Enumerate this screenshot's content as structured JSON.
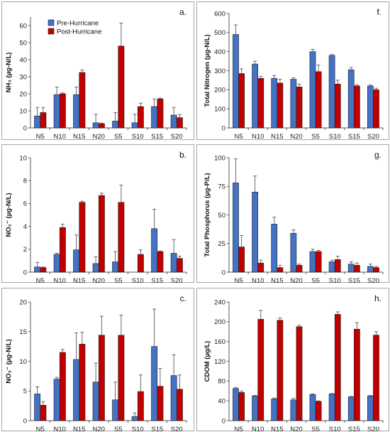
{
  "colors": {
    "pre": "#4472c4",
    "post": "#c00000",
    "frame": "#a6a6a6"
  },
  "legend": {
    "pre_label": "Pre-Hurricane",
    "post_label": "Post-Hurricane",
    "position": "top-left"
  },
  "chart_data": [
    {
      "type": "bar",
      "panel_label": "a.",
      "ylabel": "NH₃ (µg-N/L)",
      "categories": [
        "N5",
        "N10",
        "N15",
        "N20",
        "S5",
        "S10",
        "S15",
        "S20"
      ],
      "ylim": [
        0,
        65
      ],
      "yticks": [
        0,
        10,
        20,
        30,
        40,
        50,
        60
      ],
      "series": [
        {
          "name": "Pre-Hurricane",
          "values": [
            7,
            19.5,
            19.5,
            3,
            4,
            3,
            12.5,
            7.5
          ],
          "errors": [
            5,
            4.5,
            4.5,
            5,
            5,
            5,
            4.5,
            4.5
          ]
        },
        {
          "name": "Post-Hurricane",
          "values": [
            9,
            20,
            32.5,
            2.5,
            48,
            12.5,
            17,
            6
          ],
          "errors": [
            3,
            0.5,
            1.5,
            0.3,
            13.5,
            2,
            0.5,
            1.8
          ]
        }
      ]
    },
    {
      "type": "bar",
      "panel_label": "f.",
      "ylabel": "Total Nitrogen (µg-N/L)",
      "categories": [
        "N5",
        "N10",
        "N15",
        "N20",
        "S5",
        "S10",
        "S15",
        "S20"
      ],
      "ylim": [
        0,
        600
      ],
      "yticks": [
        0,
        100,
        200,
        300,
        400,
        500,
        600
      ],
      "series": [
        {
          "name": "Pre-Hurricane",
          "values": [
            490,
            335,
            260,
            255,
            400,
            380,
            305,
            220
          ],
          "errors": [
            50,
            15,
            15,
            8,
            12,
            5,
            12,
            5
          ]
        },
        {
          "name": "Post-Hurricane",
          "values": [
            285,
            260,
            235,
            215,
            295,
            230,
            220,
            200
          ],
          "errors": [
            25,
            10,
            20,
            15,
            35,
            20,
            5,
            8
          ]
        }
      ]
    },
    {
      "type": "bar",
      "panel_label": "b.",
      "ylabel": "NO₂⁻ (µg-N/L)",
      "categories": [
        "N5",
        "N10",
        "N15",
        "N20",
        "S5",
        "S10",
        "S15",
        "S20"
      ],
      "ylim": [
        0,
        10
      ],
      "yticks": [
        0,
        2,
        4,
        6,
        8,
        10
      ],
      "series": [
        {
          "name": "Pre-Hurricane",
          "values": [
            0.45,
            1.55,
            1.95,
            0.75,
            0.9,
            0,
            3.8,
            1.65
          ],
          "errors": [
            0.4,
            0.1,
            1.3,
            0.6,
            0.9,
            0,
            1.7,
            1.2
          ]
        },
        {
          "name": "Post-Hurricane",
          "values": [
            0.4,
            3.9,
            6.1,
            6.7,
            6.1,
            1.55,
            1.8,
            1.2
          ],
          "errors": [
            0.05,
            0.3,
            0.1,
            0.2,
            1.5,
            0.4,
            0.05,
            0.2
          ]
        }
      ]
    },
    {
      "type": "bar",
      "panel_label": "g.",
      "ylabel": "Total Phosphorus (µg-P/L)",
      "categories": [
        "N5",
        "N10",
        "N15",
        "N20",
        "S5",
        "S10",
        "S15",
        "S20"
      ],
      "ylim": [
        0,
        100
      ],
      "yticks": [
        0,
        25,
        50,
        75,
        100
      ],
      "series": [
        {
          "name": "Pre-Hurricane",
          "values": [
            78,
            70,
            42,
            34,
            18,
            9,
            7,
            5
          ],
          "errors": [
            21,
            14,
            6,
            3,
            2,
            1.5,
            2,
            2
          ]
        },
        {
          "name": "Post-Hurricane",
          "values": [
            22,
            8,
            4,
            6,
            18,
            11,
            6,
            4
          ],
          "errors": [
            10,
            2.5,
            2,
            1,
            1,
            3,
            2,
            1
          ]
        }
      ]
    },
    {
      "type": "bar",
      "panel_label": "c.",
      "ylabel": "NO₃⁻ (µg-N/L)",
      "categories": [
        "N5",
        "N10",
        "N15",
        "N20",
        "S5",
        "S10",
        "S15",
        "S20"
      ],
      "ylim": [
        0,
        20
      ],
      "yticks": [
        0,
        5,
        10,
        15,
        20
      ],
      "series": [
        {
          "name": "Pre-Hurricane",
          "values": [
            4.5,
            7,
            10.3,
            6.5,
            3.5,
            0.7,
            12.5,
            7.6
          ],
          "errors": [
            1.2,
            0.3,
            4.5,
            3.2,
            3,
            0.6,
            6.3,
            3.5
          ]
        },
        {
          "name": "Post-Hurricane",
          "values": [
            2.6,
            11.5,
            12.9,
            14.4,
            14.4,
            4.9,
            5.8,
            5.3
          ],
          "errors": [
            0.6,
            0.5,
            2,
            3.2,
            3.4,
            2.8,
            3,
            2.4
          ]
        }
      ]
    },
    {
      "type": "bar",
      "panel_label": "h.",
      "ylabel": "CDOM (µg/L)",
      "categories": [
        "N5",
        "N10",
        "N15",
        "N20",
        "S5",
        "S10",
        "S15",
        "S20"
      ],
      "ylim": [
        0,
        240
      ],
      "yticks": [
        0,
        40,
        80,
        120,
        160,
        200,
        240
      ],
      "series": [
        {
          "name": "Pre-Hurricane",
          "values": [
            65,
            50,
            44,
            42,
            53,
            54,
            48,
            50
          ],
          "errors": [
            2,
            1,
            2,
            3,
            1,
            1,
            1,
            1
          ]
        },
        {
          "name": "Post-Hurricane",
          "values": [
            57,
            205,
            203,
            190,
            39,
            215,
            185,
            173
          ],
          "errors": [
            3,
            18,
            5,
            3,
            1,
            5,
            13,
            7
          ]
        }
      ]
    }
  ]
}
